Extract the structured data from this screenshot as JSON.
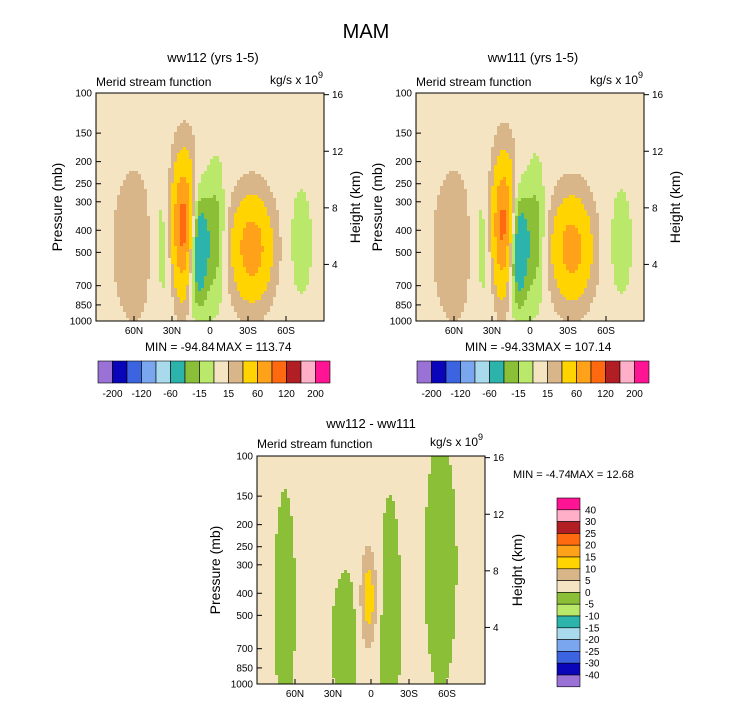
{
  "figure": {
    "title": "MAM"
  },
  "palette": {
    "background": "#ffffff",
    "frame": "#000000",
    "levels": {
      "-200": "#9a72d6",
      "-160": "#0a05b8",
      "-120": "#3c64e0",
      "-90": "#7aa6f0",
      "-60": "#a9d9ec",
      "-30": "#2cb3ab",
      "-15": "#8cbf38",
      "0": "#b9e86a",
      "15": "#f4e4c2",
      "30": "#d9b58a",
      "60": "#ffd400",
      "90": "#ffa21a",
      "120": "#ff6a10",
      "160": "#b11f25",
      "200": "#ffb0c8",
      "240": "#ff1493"
    },
    "diff": {
      "-40": "#9a72d6",
      "-30": "#0a05b8",
      "-25": "#3c64e0",
      "-20": "#7aa6f0",
      "-15": "#a9d9ec",
      "-10": "#2cb3ab",
      "-5": "#b9e86a",
      "0": "#8cbf38",
      "5": "#f4e4c2",
      "10": "#d9b58a",
      "15": "#ffd400",
      "20": "#ffa21a",
      "25": "#ff6a10",
      "30": "#b11f25",
      "40": "#ffb0c8",
      "41": "#ff1493"
    }
  },
  "chart_data": [
    {
      "type": "contour",
      "title": "ww112 (yrs 1-5)",
      "left_label": "Merid stream function",
      "right_label": "kg/s x 10",
      "right_label_exp": "9",
      "xlabel": "",
      "ylabel": "Pressure (mb)",
      "ylabel_right": "Height (km)",
      "x_ticks": [
        "60N",
        "30N",
        "0",
        "30S",
        "60S"
      ],
      "x_tick_lat": [
        60,
        30,
        0,
        -30,
        -60
      ],
      "x_range": [
        90,
        -90
      ],
      "y_ticks": [
        100,
        150,
        200,
        250,
        300,
        400,
        500,
        700,
        850,
        1000
      ],
      "y_range": [
        100,
        1000
      ],
      "height_ticks": [
        4,
        8,
        12,
        16
      ],
      "min_label": "MIN = -94.84",
      "max_label": "MAX = 113.74",
      "min": -94.84,
      "max": 113.74,
      "cells": [
        {
          "lat": -33,
          "p": 480,
          "amp": 70,
          "wlat": 11,
          "wlog": 0.36
        },
        {
          "lat": 10,
          "p": 470,
          "amp": -92,
          "wlat": 6,
          "wlog": 0.42
        },
        {
          "lat": -5,
          "p": 420,
          "amp": -30,
          "wlat": 5,
          "wlog": 0.5
        },
        {
          "lat": 20,
          "p": 390,
          "amp": 112,
          "wlat": 7.5,
          "wlog": 0.46
        },
        {
          "lat": 35,
          "p": 450,
          "amp": -22,
          "wlat": 7,
          "wlog": 0.5
        },
        {
          "lat": 60,
          "p": 470,
          "amp": 18,
          "wlat": 12,
          "wlog": 0.55
        },
        {
          "lat": -72,
          "p": 450,
          "amp": -16,
          "wlat": 7,
          "wlog": 0.45
        }
      ],
      "background_value": 8
    },
    {
      "type": "contour",
      "title": "ww111 (yrs 1-5)",
      "left_label": "Merid stream function",
      "right_label": "kg/s x 10",
      "right_label_exp": "9",
      "xlabel": "",
      "ylabel": "Pressure (mb)",
      "ylabel_right": "Height (km)",
      "x_ticks": [
        "60N",
        "30N",
        "0",
        "30S",
        "60S"
      ],
      "x_tick_lat": [
        60,
        30,
        0,
        -30,
        -60
      ],
      "x_range": [
        90,
        -90
      ],
      "y_ticks": [
        100,
        150,
        200,
        250,
        300,
        400,
        500,
        700,
        850,
        1000
      ],
      "y_range": [
        100,
        1000
      ],
      "height_ticks": [
        4,
        8,
        12,
        16
      ],
      "min_label": "MIN = -94.33",
      "max_label": "MAX = 107.14",
      "min": -94.33,
      "max": 107.14,
      "cells": [
        {
          "lat": -33,
          "p": 480,
          "amp": 66,
          "wlat": 11,
          "wlog": 0.36
        },
        {
          "lat": 10,
          "p": 470,
          "amp": -91,
          "wlat": 6,
          "wlog": 0.42
        },
        {
          "lat": -5,
          "p": 420,
          "amp": -30,
          "wlat": 5,
          "wlog": 0.5
        },
        {
          "lat": 20,
          "p": 390,
          "amp": 106,
          "wlat": 7.5,
          "wlog": 0.46
        },
        {
          "lat": 35,
          "p": 450,
          "amp": -22,
          "wlat": 7,
          "wlog": 0.5
        },
        {
          "lat": 60,
          "p": 470,
          "amp": 18,
          "wlat": 12,
          "wlog": 0.55
        },
        {
          "lat": -72,
          "p": 450,
          "amp": -16,
          "wlat": 7,
          "wlog": 0.45
        }
      ],
      "background_value": 8
    },
    {
      "type": "contour",
      "title": "ww112 - ww111",
      "left_label": "Merid stream function",
      "right_label": "kg/s x 10",
      "right_label_exp": "9",
      "xlabel": "",
      "ylabel": "Pressure (mb)",
      "ylabel_right": "Height (km)",
      "x_ticks": [
        "60N",
        "30N",
        "0",
        "30S",
        "60S"
      ],
      "x_tick_lat": [
        60,
        30,
        0,
        -30,
        -60
      ],
      "x_range": [
        90,
        -90
      ],
      "y_ticks": [
        100,
        150,
        200,
        250,
        300,
        400,
        500,
        700,
        850,
        1000
      ],
      "y_range": [
        100,
        1000
      ],
      "height_ticks": [
        4,
        8,
        12,
        16
      ],
      "min_label": "MIN =  -4.74",
      "max_label": "MAX =  12.68",
      "min": -4.74,
      "max": 12.68,
      "cells": [
        {
          "lat": 2,
          "p": 420,
          "amp": 12.5,
          "wlat": 4.5,
          "wlog": 0.35
        },
        {
          "lat": 20,
          "p": 650,
          "amp": -3.5,
          "wlat": 7,
          "wlog": 0.45
        },
        {
          "lat": -15,
          "p": 500,
          "amp": -4.5,
          "wlat": 5,
          "wlog": 0.7
        },
        {
          "lat": 68,
          "p": 450,
          "amp": -4,
          "wlat": 5,
          "wlog": 0.7
        },
        {
          "lat": -55,
          "p": 300,
          "amp": -3.5,
          "wlat": 8,
          "wlog": 0.8
        }
      ],
      "background_value": 1
    }
  ],
  "colorbars": {
    "main": {
      "levels": [
        -200,
        -160,
        -120,
        -90,
        -60,
        -30,
        -15,
        0,
        15,
        30,
        60,
        90,
        120,
        160,
        200,
        240
      ],
      "labels": [
        "-200",
        "-120",
        "-60",
        "-15",
        "15",
        "60",
        "120",
        "200"
      ]
    },
    "diff": {
      "levels": [
        -40,
        -30,
        -25,
        -20,
        -15,
        -10,
        -5,
        0,
        5,
        10,
        15,
        20,
        25,
        30,
        40,
        41
      ],
      "labels": [
        "40",
        "30",
        "25",
        "20",
        "15",
        "10",
        "5",
        "0",
        "-5",
        "-10",
        "-15",
        "-20",
        "-25",
        "-30",
        "-40"
      ]
    }
  }
}
